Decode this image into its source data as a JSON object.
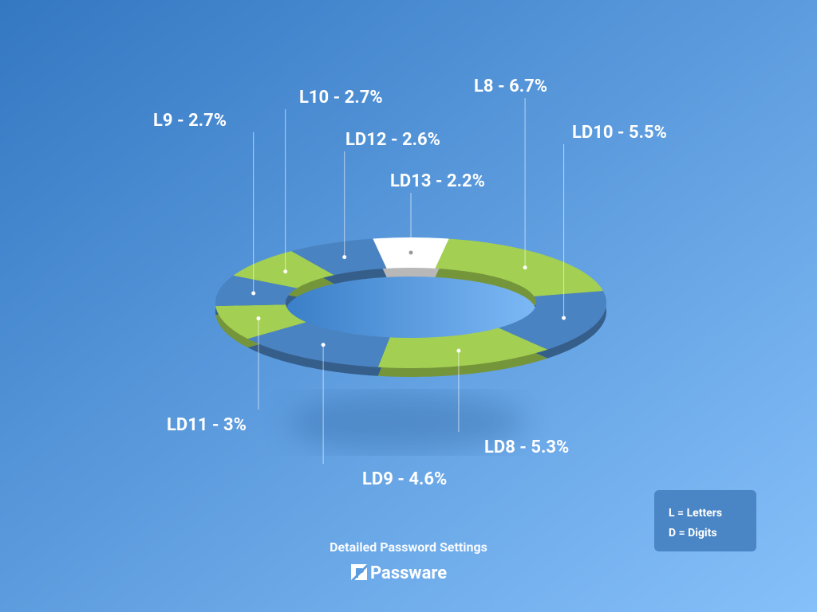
{
  "chart_data": {
    "type": "pie",
    "title": "Detailed Password Settings",
    "values": [
      2.2,
      6.7,
      5.5,
      5.3,
      4.6,
      3,
      2.7,
      2.7,
      2.6
    ],
    "value_labels": [
      "LD13 - 2.2%",
      "L8 - 6.7%",
      "LD10 - 5.5%",
      "LD8 - 5.3%",
      "LD9 - 4.6%",
      "LD11 - 3%",
      "L9 - 2.7%",
      "L10 - 2.7%",
      "LD12 - 2.6%"
    ],
    "colors": [
      "#ffffff",
      "#a3cf52",
      "#4a83c1",
      "#a3cf52",
      "#4a83c1",
      "#a3cf52",
      "#4a83c1",
      "#a3cf52",
      "#4a83c1"
    ],
    "legend": [
      "L = Letters",
      "D = Digits"
    ]
  },
  "brand": "Passware"
}
